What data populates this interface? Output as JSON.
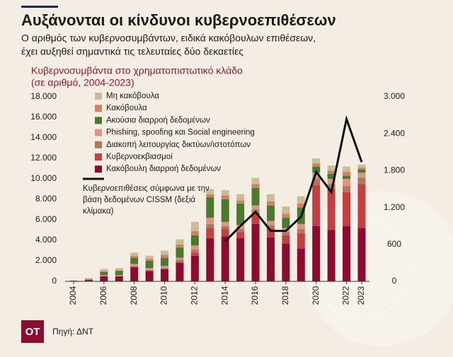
{
  "header": {
    "title": "Αυξάνονται οι κίνδυνοι κυβερνοεπιθέσεων",
    "subtitle": [
      "Ο αριθμός των κυβερνοσυμβάντων, ειδικά κακόβουλων επιθέσεων,",
      "έχει αυξηθεί σημαντικά τις τελευταίες δύο δεκαετίες"
    ]
  },
  "chart_data": {
    "type": "bar",
    "stacked": true,
    "title": "Κυβερνοσυμβάντα στο χρηματοπιστωτικό κλάδο",
    "subtitle": "(σε αριθμό, 2004-2023)",
    "categories": [
      "2004",
      null,
      "2006",
      null,
      "2008",
      null,
      "2010",
      null,
      "2012",
      null,
      "2014",
      null,
      "2016",
      null,
      "2018",
      null,
      "2020",
      null,
      "2022",
      "2023"
    ],
    "ylim": [
      0,
      18000
    ],
    "yticks": [
      0,
      {
        "value": 2000,
        "label": "2.000"
      },
      {
        "value": 4000,
        "label": "4.000"
      },
      {
        "value": 6000,
        "label": "6.000"
      },
      {
        "value": 8000,
        "label": "8.000"
      },
      {
        "value": 10000,
        "label": "10.000"
      },
      {
        "value": 12000,
        "label": "12.000"
      },
      {
        "value": 14000,
        "label": "14.000"
      },
      {
        "value": 16000,
        "label": "16.000"
      },
      {
        "value": 18000,
        "label": "18.000"
      }
    ],
    "y2lim": [
      0,
      3000
    ],
    "y2ticks": [
      0,
      600,
      {
        "value": 1200,
        "label": "1.200"
      },
      {
        "value": 1800,
        "label": "1.800"
      },
      {
        "value": 2400,
        "label": "2.400"
      },
      {
        "value": 3000,
        "label": "3.000"
      }
    ],
    "legend": "upper left",
    "series": [
      {
        "name": "Κακόβουλη διαρροή δεδομένων",
        "color": "#8c0b2e",
        "values": [
          50,
          150,
          500,
          500,
          1400,
          1000,
          1200,
          1800,
          2500,
          4200,
          4400,
          4200,
          5600,
          4300,
          3700,
          3200,
          5400,
          5000,
          5400,
          5200
        ]
      },
      {
        "name": "Κυβερνοεκβιασμοί",
        "color": "#c2403f",
        "values": [
          0,
          0,
          0,
          0,
          0,
          0,
          0,
          100,
          300,
          1000,
          700,
          600,
          1100,
          900,
          800,
          1500,
          4000,
          4000,
          3300,
          4300
        ]
      },
      {
        "name": "Διακοπή λειτουργίας δικτύων/ιστοτόπων",
        "color": "#a87a64",
        "values": [
          0,
          0,
          0,
          0,
          100,
          100,
          100,
          200,
          300,
          400,
          300,
          300,
          300,
          300,
          300,
          400,
          600,
          500,
          600,
          600
        ]
      },
      {
        "name": "Phishing, spoofing και Social engineering",
        "color": "#dc9585",
        "values": [
          0,
          50,
          100,
          100,
          200,
          200,
          200,
          200,
          400,
          600,
          400,
          400,
          400,
          400,
          400,
          500,
          600,
          500,
          700,
          500
        ]
      },
      {
        "name": "Ακούσια διαρροή δεδομένων",
        "color": "#4b7a2f",
        "values": [
          30,
          50,
          300,
          400,
          600,
          700,
          800,
          1000,
          1000,
          2000,
          2200,
          2100,
          1700,
          1500,
          1000,
          1600,
          600,
          500,
          300,
          300
        ]
      },
      {
        "name": "Κακόβουλα",
        "color": "#d4805f",
        "values": [
          0,
          0,
          100,
          100,
          200,
          200,
          300,
          300,
          400,
          300,
          400,
          300,
          400,
          400,
          400,
          400,
          300,
          300,
          400,
          200
        ]
      },
      {
        "name": "Μη κακόβουλα",
        "color": "#c9bc99",
        "values": [
          20,
          50,
          200,
          200,
          300,
          300,
          400,
          500,
          900,
          500,
          500,
          600,
          600,
          700,
          700,
          700,
          500,
          500,
          500,
          300
        ]
      },
      {
        "name": "Κυβερνοεπιθέσεις σύμφωνα με την βάση δεδομένων CISSM (δεξιά κλίμακα)",
        "type": "line",
        "axis": "y2",
        "color": "#111111",
        "values": [
          null,
          null,
          null,
          null,
          null,
          null,
          null,
          null,
          null,
          null,
          650,
          900,
          1130,
          820,
          820,
          1050,
          1780,
          1450,
          2640,
          1940
        ]
      }
    ]
  },
  "footer": {
    "logo": "OT",
    "source": "Πηγή: ΔΝΤ"
  }
}
